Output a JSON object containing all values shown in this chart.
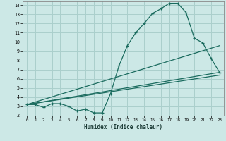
{
  "xlabel": "Humidex (Indice chaleur)",
  "bg_color": "#cce8e6",
  "grid_color": "#aacfcc",
  "line_color": "#1a6b5e",
  "xlim": [
    -0.5,
    23.5
  ],
  "ylim": [
    2,
    14.4
  ],
  "xticks": [
    0,
    1,
    2,
    3,
    4,
    5,
    6,
    7,
    8,
    9,
    10,
    11,
    12,
    13,
    14,
    15,
    16,
    17,
    18,
    19,
    20,
    21,
    22,
    23
  ],
  "yticks": [
    2,
    3,
    4,
    5,
    6,
    7,
    8,
    9,
    10,
    11,
    12,
    13,
    14
  ],
  "line1_x": [
    0,
    1,
    2,
    3,
    4,
    5,
    6,
    7,
    8,
    9,
    10,
    11,
    12,
    13,
    14,
    15,
    16,
    17,
    18,
    19,
    20,
    21,
    22,
    23
  ],
  "line1_y": [
    3.2,
    3.2,
    2.9,
    3.3,
    3.3,
    3.0,
    2.5,
    2.7,
    2.3,
    2.3,
    4.4,
    7.4,
    9.6,
    11.0,
    12.0,
    13.1,
    13.6,
    14.2,
    14.2,
    13.2,
    10.4,
    9.9,
    8.2,
    6.7
  ],
  "line2_x": [
    0,
    23
  ],
  "line2_y": [
    3.2,
    6.4
  ],
  "line3_x": [
    0,
    23
  ],
  "line3_y": [
    3.2,
    9.6
  ],
  "line4_x": [
    0,
    23
  ],
  "line4_y": [
    3.2,
    6.7
  ]
}
